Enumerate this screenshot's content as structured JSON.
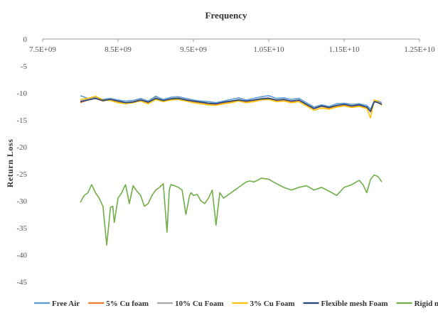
{
  "chart_data": {
    "type": "line",
    "title": "Frequency",
    "xlabel": "",
    "ylabel": "Return Loss",
    "xlim": [
      7500000000.0,
      12500000000.0
    ],
    "ylim": [
      -45,
      0
    ],
    "x_ticks": [
      7500000000.0,
      8500000000.0,
      9500000000.0,
      10500000000.0,
      11500000000.0,
      12500000000.0
    ],
    "x_tick_labels": [
      "7.5E+09",
      "8.5E+09",
      "9.5E+09",
      "1.05E+10",
      "1.15E+10",
      "1.25E+10"
    ],
    "y_ticks": [
      0,
      -5,
      -10,
      -15,
      -20,
      -25,
      -30,
      -35,
      -40,
      -45
    ],
    "y_tick_labels": [
      "0",
      "-5",
      "-10",
      "-15",
      "-20",
      "-25",
      "-30",
      "-35",
      "-40",
      "-45"
    ],
    "x_axis_position": "top",
    "grid": false,
    "legend_position": "bottom",
    "series": [
      {
        "name": "Free Air",
        "color": "#5b9bd5",
        "x": [
          8000000000.0,
          8100000000.0,
          8200000000.0,
          8300000000.0,
          8400000000.0,
          8500000000.0,
          8600000000.0,
          8700000000.0,
          8800000000.0,
          8900000000.0,
          9000000000.0,
          9100000000.0,
          9200000000.0,
          9300000000.0,
          9400000000.0,
          9500000000.0,
          9600000000.0,
          9700000000.0,
          9800000000.0,
          9900000000.0,
          10000000000.0,
          10100000000.0,
          10200000000.0,
          10300000000.0,
          10400000000.0,
          10500000000.0,
          10600000000.0,
          10700000000.0,
          10800000000.0,
          10900000000.0,
          11000000000.0,
          11100000000.0,
          11200000000.0,
          11300000000.0,
          11400000000.0,
          11500000000.0,
          11600000000.0,
          11700000000.0,
          11800000000.0,
          11850000000.0,
          11900000000.0,
          11950000000.0,
          12000000000.0
        ],
        "y": [
          -10.5,
          -11.0,
          -10.8,
          -11.2,
          -11.0,
          -11.3,
          -11.5,
          -11.4,
          -11.0,
          -11.5,
          -10.6,
          -11.2,
          -10.8,
          -10.7,
          -11.0,
          -11.3,
          -11.5,
          -11.6,
          -11.8,
          -11.5,
          -11.2,
          -10.9,
          -11.3,
          -11.0,
          -10.7,
          -10.5,
          -11.0,
          -10.9,
          -11.2,
          -11.0,
          -11.8,
          -12.6,
          -12.2,
          -12.5,
          -12.0,
          -11.9,
          -12.1,
          -12.0,
          -12.3,
          -13.0,
          -11.4,
          -11.5,
          -11.8
        ]
      },
      {
        "name": "5% Cu foam",
        "color": "#ed7d31",
        "x": [
          8000000000.0,
          8100000000.0,
          8200000000.0,
          8300000000.0,
          8400000000.0,
          8500000000.0,
          8600000000.0,
          8700000000.0,
          8800000000.0,
          8900000000.0,
          9000000000.0,
          9100000000.0,
          9200000000.0,
          9300000000.0,
          9400000000.0,
          9500000000.0,
          9600000000.0,
          9700000000.0,
          9800000000.0,
          9900000000.0,
          10000000000.0,
          10100000000.0,
          10200000000.0,
          10300000000.0,
          10400000000.0,
          10500000000.0,
          10600000000.0,
          10700000000.0,
          10800000000.0,
          10900000000.0,
          11000000000.0,
          11100000000.0,
          11200000000.0,
          11300000000.0,
          11400000000.0,
          11500000000.0,
          11600000000.0,
          11700000000.0,
          11800000000.0,
          11850000000.0,
          11900000000.0,
          11950000000.0,
          12000000000.0
        ],
        "y": [
          -11.8,
          -11.3,
          -11.0,
          -11.5,
          -11.2,
          -11.6,
          -11.9,
          -11.7,
          -11.3,
          -11.8,
          -11.0,
          -11.5,
          -11.1,
          -11.0,
          -11.3,
          -11.6,
          -11.8,
          -12.0,
          -12.1,
          -11.8,
          -11.6,
          -11.3,
          -11.6,
          -11.4,
          -11.1,
          -11.0,
          -11.4,
          -11.3,
          -11.6,
          -11.4,
          -12.2,
          -12.9,
          -12.5,
          -12.8,
          -12.4,
          -12.2,
          -12.5,
          -12.3,
          -12.7,
          -13.5,
          -11.6,
          -11.8,
          -12.2
        ]
      },
      {
        "name": "10% Cu Foam",
        "color": "#a5a5a5",
        "x": [
          8000000000.0,
          8100000000.0,
          8200000000.0,
          8300000000.0,
          8400000000.0,
          8500000000.0,
          8600000000.0,
          8700000000.0,
          8800000000.0,
          8900000000.0,
          9000000000.0,
          9100000000.0,
          9200000000.0,
          9300000000.0,
          9400000000.0,
          9500000000.0,
          9600000000.0,
          9700000000.0,
          9800000000.0,
          9900000000.0,
          10000000000.0,
          10100000000.0,
          10200000000.0,
          10300000000.0,
          10400000000.0,
          10500000000.0,
          10600000000.0,
          10700000000.0,
          10800000000.0,
          10900000000.0,
          11000000000.0,
          11100000000.0,
          11200000000.0,
          11300000000.0,
          11400000000.0,
          11500000000.0,
          11600000000.0,
          11700000000.0,
          11800000000.0,
          11850000000.0,
          11900000000.0,
          11950000000.0,
          12000000000.0
        ],
        "y": [
          -11.5,
          -11.2,
          -10.9,
          -11.4,
          -11.1,
          -11.5,
          -11.8,
          -11.6,
          -11.2,
          -11.7,
          -10.9,
          -11.4,
          -11.0,
          -10.9,
          -11.2,
          -11.5,
          -11.7,
          -11.9,
          -12.0,
          -11.7,
          -11.5,
          -11.2,
          -11.5,
          -11.3,
          -11.0,
          -10.9,
          -11.3,
          -11.2,
          -11.5,
          -11.3,
          -12.1,
          -12.8,
          -12.4,
          -12.7,
          -12.3,
          -12.1,
          -12.4,
          -12.2,
          -12.6,
          -13.6,
          -11.5,
          -11.7,
          -12.1
        ]
      },
      {
        "name": "3% Cu Foam",
        "color": "#ffc000",
        "x": [
          8000000000.0,
          8100000000.0,
          8200000000.0,
          8300000000.0,
          8400000000.0,
          8500000000.0,
          8600000000.0,
          8700000000.0,
          8800000000.0,
          8900000000.0,
          9000000000.0,
          9100000000.0,
          9200000000.0,
          9300000000.0,
          9400000000.0,
          9500000000.0,
          9600000000.0,
          9700000000.0,
          9800000000.0,
          9900000000.0,
          10000000000.0,
          10100000000.0,
          10200000000.0,
          10300000000.0,
          10400000000.0,
          10500000000.0,
          10600000000.0,
          10700000000.0,
          10800000000.0,
          10900000000.0,
          11000000000.0,
          11100000000.0,
          11200000000.0,
          11300000000.0,
          11400000000.0,
          11500000000.0,
          11600000000.0,
          11700000000.0,
          11800000000.0,
          11850000000.0,
          11900000000.0,
          11950000000.0,
          12000000000.0
        ],
        "y": [
          -11.2,
          -11.0,
          -10.6,
          -11.3,
          -11.4,
          -11.8,
          -12.0,
          -11.8,
          -11.5,
          -12.0,
          -11.2,
          -11.6,
          -11.3,
          -11.2,
          -11.5,
          -11.8,
          -12.0,
          -12.2,
          -12.3,
          -12.0,
          -11.8,
          -11.5,
          -11.8,
          -11.6,
          -11.3,
          -11.2,
          -11.6,
          -11.5,
          -11.8,
          -11.6,
          -12.4,
          -13.2,
          -12.8,
          -13.0,
          -12.6,
          -12.4,
          -12.7,
          -12.5,
          -12.9,
          -14.6,
          -11.3,
          -11.6,
          -12.3
        ]
      },
      {
        "name": "Flexible mesh Foam",
        "color": "#264478",
        "x": [
          8000000000.0,
          8100000000.0,
          8200000000.0,
          8300000000.0,
          8400000000.0,
          8500000000.0,
          8600000000.0,
          8700000000.0,
          8800000000.0,
          8900000000.0,
          9000000000.0,
          9100000000.0,
          9200000000.0,
          9300000000.0,
          9400000000.0,
          9500000000.0,
          9600000000.0,
          9700000000.0,
          9800000000.0,
          9900000000.0,
          10000000000.0,
          10100000000.0,
          10200000000.0,
          10300000000.0,
          10400000000.0,
          10500000000.0,
          10600000000.0,
          10700000000.0,
          10800000000.0,
          10900000000.0,
          11000000000.0,
          11100000000.0,
          11200000000.0,
          11300000000.0,
          11400000000.0,
          11500000000.0,
          11600000000.0,
          11700000000.0,
          11800000000.0,
          11850000000.0,
          11900000000.0,
          11950000000.0,
          12000000000.0
        ],
        "y": [
          -11.6,
          -11.3,
          -11.0,
          -11.4,
          -11.2,
          -11.5,
          -11.8,
          -11.7,
          -11.3,
          -11.7,
          -11.0,
          -11.4,
          -11.1,
          -11.0,
          -11.3,
          -11.5,
          -11.7,
          -11.9,
          -12.0,
          -11.7,
          -11.5,
          -11.3,
          -11.5,
          -11.3,
          -11.1,
          -11.0,
          -11.3,
          -11.2,
          -11.5,
          -11.3,
          -12.1,
          -12.9,
          -12.4,
          -12.7,
          -12.3,
          -12.1,
          -12.4,
          -12.2,
          -12.6,
          -13.4,
          -11.6,
          -11.8,
          -12.1
        ]
      },
      {
        "name": "Rigid mesh Foam",
        "color": "#70ad47",
        "x": [
          8000000000.0,
          8050000000.0,
          8100000000.0,
          8150000000.0,
          8200000000.0,
          8250000000.0,
          8300000000.0,
          8350000000.0,
          8400000000.0,
          8430000000.0,
          8450000000.0,
          8500000000.0,
          8550000000.0,
          8580000000.0,
          8600000000.0,
          8650000000.0,
          8700000000.0,
          8750000000.0,
          8800000000.0,
          8850000000.0,
          8900000000.0,
          8950000000.0,
          9000000000.0,
          9050000000.0,
          9100000000.0,
          9150000000.0,
          9180000000.0,
          9200000000.0,
          9250000000.0,
          9300000000.0,
          9350000000.0,
          9400000000.0,
          9450000000.0,
          9470000000.0,
          9500000000.0,
          9550000000.0,
          9600000000.0,
          9650000000.0,
          9700000000.0,
          9750000000.0,
          9800000000.0,
          9850000000.0,
          9900000000.0,
          9950000000.0,
          10000000000.0,
          10050000000.0,
          10100000000.0,
          10150000000.0,
          10200000000.0,
          10250000000.0,
          10300000000.0,
          10350000000.0,
          10400000000.0,
          10500000000.0,
          10600000000.0,
          10700000000.0,
          10800000000.0,
          10900000000.0,
          11000000000.0,
          11100000000.0,
          11200000000.0,
          11300000000.0,
          11400000000.0,
          11500000000.0,
          11600000000.0,
          11700000000.0,
          11750000000.0,
          11800000000.0,
          11850000000.0,
          11900000000.0,
          11950000000.0,
          12000000000.0
        ],
        "y": [
          -30.3,
          -29.0,
          -28.5,
          -27.0,
          -28.5,
          -29.5,
          -31.0,
          -38.2,
          -31.2,
          -31.0,
          -34.0,
          -29.5,
          -28.5,
          -27.5,
          -27.0,
          -30.5,
          -27.2,
          -28.2,
          -29.0,
          -31.0,
          -30.5,
          -29.0,
          -28.0,
          -27.5,
          -26.8,
          -35.8,
          -28.0,
          -27.0,
          -27.2,
          -27.5,
          -28.0,
          -32.5,
          -29.0,
          -28.5,
          -29.0,
          -28.8,
          -30.0,
          -30.5,
          -29.5,
          -28.0,
          -34.5,
          -28.5,
          -29.5,
          -29.0,
          -28.5,
          -28.0,
          -27.5,
          -27.0,
          -26.5,
          -26.3,
          -26.5,
          -26.2,
          -25.8,
          -26.0,
          -26.8,
          -27.5,
          -28.0,
          -27.5,
          -27.2,
          -28.0,
          -27.5,
          -28.2,
          -29.0,
          -27.5,
          -27.0,
          -26.2,
          -27.0,
          -28.5,
          -26.0,
          -25.2,
          -25.5,
          -26.5
        ]
      }
    ]
  }
}
